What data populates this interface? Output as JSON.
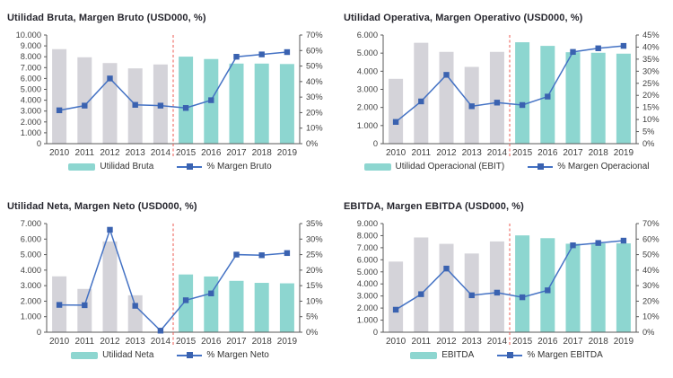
{
  "colors": {
    "bar_historical": "#d4d3d9",
    "bar_forecast": "#8dd6d0",
    "line_blue": "#4472c4",
    "marker_blue": "#3a62b0",
    "separator_red": "#ee5a50",
    "axis_line": "#595959",
    "axis_text": "#404040",
    "title_text": "#26262e"
  },
  "chart_data": [
    {
      "type": "bar+line",
      "title": "Utilidad Bruta, Margen Bruto (USD000, %)",
      "categories": [
        "2010",
        "2011",
        "2012",
        "2013",
        "2014",
        "2015",
        "2016",
        "2017",
        "2018",
        "2019"
      ],
      "series": [
        {
          "name": "Utilidad Bruta",
          "type": "bar",
          "axis": "left",
          "values": [
            8700,
            7950,
            7420,
            6930,
            7290,
            8010,
            7790,
            7370,
            7370,
            7330
          ]
        },
        {
          "name": "% Margen Bruto",
          "type": "line",
          "axis": "right",
          "values": [
            21.5,
            24.5,
            42,
            25,
            24.5,
            23,
            28,
            56,
            57.5,
            59
          ]
        }
      ],
      "left_axis": {
        "min": 0,
        "max": 10000,
        "step": 1000,
        "tick_labels": [
          "10.000",
          "9.000",
          "8.000",
          "7.000",
          "6.000",
          "5.000",
          "4.000",
          "3.000",
          "2.000",
          "1.000",
          "0"
        ]
      },
      "right_axis": {
        "min": 0,
        "max": 70,
        "step": 10,
        "unit": "%",
        "tick_labels": [
          "70%",
          "60%",
          "50%",
          "40%",
          "30%",
          "20%",
          "10%",
          "0%"
        ]
      },
      "separator_after_category": "2014",
      "legend_position": "bottom",
      "grid": "off"
    },
    {
      "type": "bar+line",
      "title": "Utilidad Operativa, Margen Operativo (USD000, %)",
      "categories": [
        "2010",
        "2011",
        "2012",
        "2013",
        "2014",
        "2015",
        "2016",
        "2017",
        "2018",
        "2019"
      ],
      "series": [
        {
          "name": "Utilidad Operacional (EBIT)",
          "type": "bar",
          "axis": "left",
          "values": [
            3580,
            5570,
            5070,
            4240,
            5070,
            5600,
            5400,
            5050,
            5020,
            4970
          ]
        },
        {
          "name": "% Margen Operacional",
          "type": "line",
          "axis": "right",
          "values": [
            9,
            17.5,
            28.5,
            15.5,
            17,
            16,
            19.5,
            38,
            39.5,
            40.5
          ]
        }
      ],
      "left_axis": {
        "min": 0,
        "max": 6000,
        "step": 1000,
        "tick_labels": [
          "6.000",
          "5.000",
          "4.000",
          "3.000",
          "2.000",
          "1.000",
          "0"
        ]
      },
      "right_axis": {
        "min": 0,
        "max": 45,
        "step": 5,
        "unit": "%",
        "tick_labels": [
          "45%",
          "40%",
          "35%",
          "30%",
          "25%",
          "20%",
          "15%",
          "10%",
          "5%",
          "0%"
        ]
      },
      "separator_after_category": "2014",
      "legend_position": "bottom",
      "grid": "off"
    },
    {
      "type": "bar+line",
      "title": "Utilidad Neta, Margen Neto (USD000, %)",
      "categories": [
        "2010",
        "2011",
        "2012",
        "2013",
        "2014",
        "2015",
        "2016",
        "2017",
        "2018",
        "2019"
      ],
      "series": [
        {
          "name": "Utilidad Neta",
          "type": "bar",
          "axis": "left",
          "values": [
            3600,
            2790,
            5850,
            2380,
            0,
            3720,
            3590,
            3310,
            3180,
            3150
          ]
        },
        {
          "name": "% Margen Neto",
          "type": "line",
          "axis": "right",
          "values": [
            8.8,
            8.7,
            33,
            8.5,
            0.5,
            10.3,
            12.5,
            25,
            24.8,
            25.5
          ]
        }
      ],
      "left_axis": {
        "min": 0,
        "max": 7000,
        "step": 1000,
        "tick_labels": [
          "7.000",
          "6.000",
          "5.000",
          "4.000",
          "3.000",
          "2.000",
          "1.000",
          "0"
        ]
      },
      "right_axis": {
        "min": 0,
        "max": 35,
        "step": 5,
        "unit": "%",
        "tick_labels": [
          "35%",
          "30%",
          "25%",
          "20%",
          "15%",
          "10%",
          "5%",
          "0%"
        ]
      },
      "separator_after_category": "2014",
      "legend_position": "bottom",
      "grid": "off"
    },
    {
      "type": "bar+line",
      "title": "EBITDA, Margen EBITDA (USD000, %)",
      "categories": [
        "2010",
        "2011",
        "2012",
        "2013",
        "2014",
        "2015",
        "2016",
        "2017",
        "2018",
        "2019"
      ],
      "series": [
        {
          "name": "EBITDA",
          "type": "bar",
          "axis": "left",
          "values": [
            5850,
            7850,
            7320,
            6520,
            7520,
            8020,
            7790,
            7330,
            7360,
            7360
          ]
        },
        {
          "name": "% Margen EBITDA",
          "type": "line",
          "axis": "right",
          "values": [
            14.5,
            24.5,
            41,
            23.8,
            25.5,
            22.5,
            27,
            56,
            57.5,
            59
          ]
        }
      ],
      "left_axis": {
        "min": 0,
        "max": 9000,
        "step": 1000,
        "tick_labels": [
          "9.000",
          "8.000",
          "7.000",
          "6.000",
          "5.000",
          "4.000",
          "3.000",
          "2.000",
          "1.000",
          "0"
        ]
      },
      "right_axis": {
        "min": 0,
        "max": 70,
        "step": 10,
        "unit": "%",
        "tick_labels": [
          "70%",
          "60%",
          "50%",
          "40%",
          "30%",
          "20%",
          "10%",
          "0%"
        ]
      },
      "separator_after_category": "2014",
      "legend_position": "bottom",
      "grid": "off"
    }
  ]
}
